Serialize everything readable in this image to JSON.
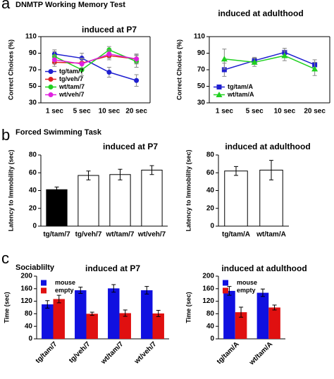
{
  "chart_data": [
    {
      "type": "line",
      "panel": "a",
      "section_title": "DNMTP Working Memory Test",
      "title": "induced at P7",
      "y_label": "Correct Choices (%)",
      "categories": [
        "1 sec",
        "5 sec",
        "10 sec",
        "20 sec"
      ],
      "ylim": [
        30,
        110
      ],
      "yticks": [
        30,
        50,
        70,
        90,
        110
      ],
      "legend": "lower left",
      "frame": true,
      "series": [
        {
          "name": "tg/tam/7",
          "color": "#1f1fd0",
          "marker": "circle",
          "values": [
            89,
            84,
            67,
            57
          ],
          "errors": [
            5,
            6,
            6,
            7
          ]
        },
        {
          "name": "tg/veh/7",
          "color": "#e02020",
          "marker": "circle",
          "values": [
            79,
            78,
            87,
            83
          ],
          "errors": [
            5,
            6,
            5,
            6
          ]
        },
        {
          "name": "wt/tam/7",
          "color": "#20d020",
          "marker": "circle",
          "values": [
            86,
            70,
            94,
            80
          ],
          "errors": [
            6,
            7,
            4,
            7
          ]
        },
        {
          "name": "wt/veh/7",
          "color": "#e020e0",
          "marker": "circle",
          "values": [
            82,
            77,
            89,
            83
          ],
          "errors": [
            5,
            6,
            5,
            5
          ]
        }
      ]
    },
    {
      "type": "line",
      "title": "induced at adulthood",
      "y_label": "Correct Choices (%)",
      "categories": [
        "1 sec",
        "5 sec",
        "10 sec",
        "20 sec"
      ],
      "ylim": [
        30,
        110
      ],
      "yticks": [
        30,
        50,
        70,
        90,
        110
      ],
      "legend": "lower left",
      "frame": true,
      "series": [
        {
          "name": "tg/tam/A",
          "color": "#1f1fd0",
          "marker": "square",
          "values": [
            70,
            81,
            91,
            76
          ],
          "errors": [
            8,
            4,
            5,
            6
          ]
        },
        {
          "name": "wt/tam/A",
          "color": "#20d020",
          "marker": "triangle",
          "values": [
            83,
            79,
            87,
            71
          ],
          "errors": [
            12,
            5,
            6,
            8
          ]
        }
      ]
    },
    {
      "type": "bar",
      "panel": "b",
      "section_title": "Forced Swimming Task",
      "title": "induced at P7",
      "y_label": "Latency to Immobility (sec)",
      "categories": [
        "tg/tam/7",
        "tg/veh/7",
        "wt/tam/7",
        "wt/veh/7"
      ],
      "values": [
        41,
        57,
        58,
        63
      ],
      "errors": [
        3,
        5,
        6,
        5
      ],
      "colors": [
        "#000000",
        "#ffffff",
        "#ffffff",
        "#ffffff"
      ],
      "ylim": [
        0,
        80
      ],
      "yticks": [
        0,
        20,
        40,
        60,
        80
      ]
    },
    {
      "type": "bar",
      "title": "induced at adulthood",
      "y_label": "Latency to Immobility (sec)",
      "categories": [
        "tg/tam/A",
        "wt/tam/A"
      ],
      "values": [
        62,
        63
      ],
      "errors": [
        5,
        11
      ],
      "colors": [
        "#ffffff",
        "#ffffff"
      ],
      "ylim": [
        0,
        80
      ],
      "yticks": [
        0,
        20,
        40,
        60,
        80
      ]
    },
    {
      "type": "bar",
      "panel": "c",
      "section_title": "Sociablilty",
      "title": "induced at P7",
      "y_label": "Time (sec)",
      "categories": [
        "tg/tam/7",
        "tg/veh/7",
        "wt/tam/7",
        "wt/veh/7"
      ],
      "ylim": [
        0,
        200
      ],
      "yticks": [
        0,
        40,
        80,
        120,
        160,
        200
      ],
      "legend": "upper left",
      "xtick_rotation": 45,
      "series": [
        {
          "name": "mouse",
          "color": "#1010e0",
          "values": [
            110,
            155,
            161,
            155
          ],
          "errors": [
            12,
            10,
            12,
            12
          ]
        },
        {
          "name": "empty",
          "color": "#e01010",
          "values": [
            127,
            80,
            82,
            81
          ],
          "errors": [
            12,
            5,
            10,
            10
          ]
        }
      ]
    },
    {
      "type": "bar",
      "title": "induced at adulthood",
      "y_label": "Time (sec)",
      "categories": [
        "tg/tam/A",
        "wt/tam/A"
      ],
      "ylim": [
        0,
        200
      ],
      "yticks": [
        0,
        40,
        80,
        120,
        160,
        200
      ],
      "legend": "upper left",
      "xtick_rotation": 45,
      "series": [
        {
          "name": "mouse",
          "color": "#1010e0",
          "values": [
            153,
            147
          ],
          "errors": [
            14,
            12
          ]
        },
        {
          "name": "empty",
          "color": "#e01010",
          "values": [
            85,
            100
          ],
          "errors": [
            16,
            8
          ]
        }
      ]
    }
  ]
}
